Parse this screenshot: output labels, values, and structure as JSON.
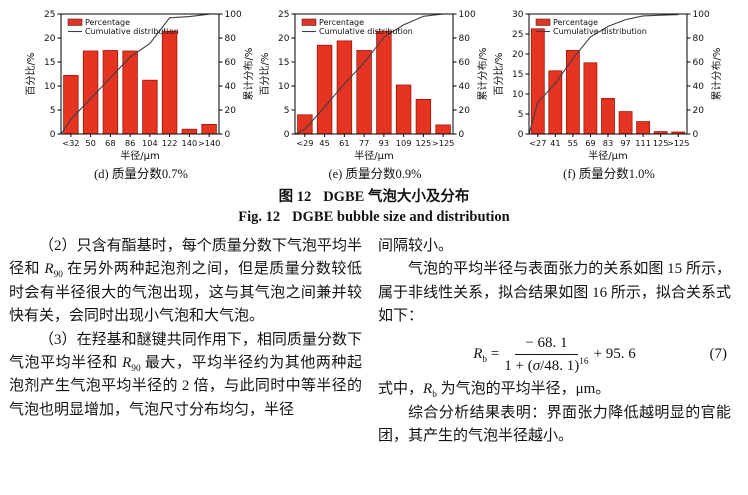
{
  "figure": {
    "caption_zh": {
      "label": "图 12",
      "text": "DGBE 气泡大小及分布"
    },
    "caption_en": {
      "label": "Fig. 12",
      "text": "DGBE bubble size and distribution"
    },
    "colors": {
      "bar": "#e53422",
      "bar_edge": "#a31408",
      "line": "#3f3f46",
      "axis": "#000000"
    }
  },
  "chart_data": [
    {
      "type": "bar",
      "sublabel": "(d) 质量分数0.7%",
      "xlabel": "半径/μm",
      "ylabel": "百分比/%",
      "ylabel_right": "累计分布/%",
      "categories": [
        "<32",
        "50",
        "68",
        "86",
        "104",
        "122",
        "140",
        ">140"
      ],
      "series": [
        {
          "name": "Percentage",
          "type": "bar",
          "axis": "left",
          "values": [
            12.2,
            17.3,
            17.4,
            17.3,
            11.2,
            21.4,
            1.0,
            2.0
          ]
        },
        {
          "name": "Cumulative distribution",
          "type": "line",
          "axis": "right",
          "values": [
            12.2,
            29.5,
            46.9,
            64.2,
            75.4,
            96.8,
            97.8,
            99.8
          ]
        }
      ],
      "ylim": [
        0,
        25
      ],
      "yticks": [
        0,
        5,
        10,
        15,
        20,
        25
      ],
      "ylim_right": [
        0,
        100
      ],
      "yticks_right": [
        0,
        20,
        40,
        60,
        80,
        100
      ],
      "legend_position": "top-left",
      "grid": false
    },
    {
      "type": "bar",
      "sublabel": "(e) 质量分数0.9%",
      "xlabel": "半径/μm",
      "ylabel": "百分比/%",
      "ylabel_right": "累计分布/%",
      "categories": [
        "<29",
        "45",
        "61",
        "77",
        "93",
        "109",
        "125",
        ">125"
      ],
      "series": [
        {
          "name": "Percentage",
          "type": "bar",
          "axis": "left",
          "values": [
            4.0,
            18.5,
            19.4,
            17.4,
            21.4,
            10.2,
            7.2,
            1.9
          ]
        },
        {
          "name": "Cumulative distribution",
          "type": "line",
          "axis": "right",
          "values": [
            4.0,
            22.5,
            41.9,
            59.3,
            80.7,
            90.9,
            98.1,
            100.0
          ]
        }
      ],
      "ylim": [
        0,
        25
      ],
      "yticks": [
        0,
        5,
        10,
        15,
        20,
        25
      ],
      "ylim_right": [
        0,
        100
      ],
      "yticks_right": [
        0,
        20,
        40,
        60,
        80,
        100
      ],
      "legend_position": "top-left",
      "grid": false
    },
    {
      "type": "bar",
      "sublabel": "(f) 质量分数1.0%",
      "xlabel": "半径/μm",
      "ylabel": "百分比/%",
      "ylabel_right": "累计分布/%",
      "categories": [
        "<27",
        "41",
        "55",
        "69",
        "83",
        "97",
        "111",
        "125",
        ">125"
      ],
      "series": [
        {
          "name": "Percentage",
          "type": "bar",
          "axis": "left",
          "values": [
            26.3,
            15.8,
            20.9,
            17.8,
            8.9,
            5.6,
            3.1,
            0.6,
            0.5
          ]
        },
        {
          "name": "Cumulative distribution",
          "type": "line",
          "axis": "right",
          "values": [
            26.3,
            42.1,
            63.0,
            80.8,
            89.7,
            95.3,
            98.4,
            99.0,
            99.5
          ]
        }
      ],
      "ylim": [
        0,
        30
      ],
      "yticks": [
        0,
        5,
        10,
        15,
        20,
        25,
        30
      ],
      "ylim_right": [
        0,
        100
      ],
      "yticks_right": [
        0,
        20,
        40,
        60,
        80,
        100
      ],
      "legend_position": "top-left",
      "grid": false
    }
  ],
  "text": {
    "left": {
      "p1": "（2）只含有酯基时，每个质量分数下气泡平均半径和 *R*_{90} 在另外两种起泡剂之间，但是质量分数较低时会有半径很大的气泡出现，这与其气泡之间兼并较快有关，会同时出现小气泡和大气泡。",
      "p2": "（3）在羟基和醚键共同作用下，相同质量分数下气泡平均半径和 *R*_{90} 最大，平均半径约为其他两种起泡剂产生气泡平均半径的 2 倍，与此同时中等半径的气泡也明显增加，气泡尺寸分布均匀，半径"
    },
    "right": {
      "p0": "间隔较小。",
      "p1": "气泡的平均半径与表面张力的关系如图 15 所示，属于非线性关系，拟合结果如图 16 所示，拟合关系式如下：",
      "p2": "式中，*R*_{b} 为气泡的平均半径，μm。",
      "p3": "综合分析结果表明：界面张力降低越明显的官能团，其产生的气泡半径越小。"
    },
    "formula": {
      "lhs": "*R*_{b} =",
      "numerator": "− 68. 1",
      "denominator": "1 + (*σ*/48. 1)^{16}",
      "tail": "+ 95. 6",
      "number": "(7)"
    }
  }
}
